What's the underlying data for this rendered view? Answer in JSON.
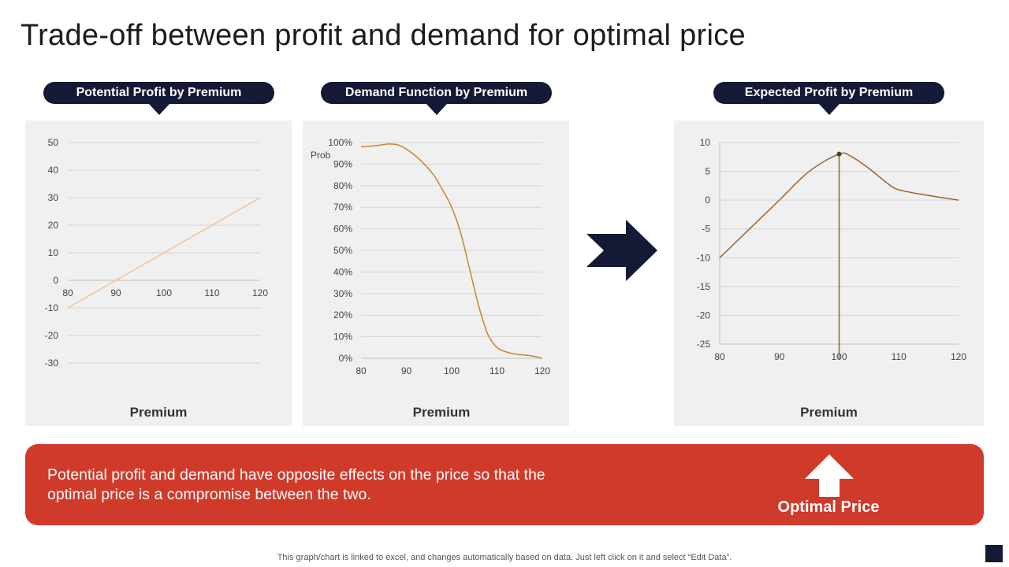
{
  "slide": {
    "title": "Trade-off between profit and demand for optimal price",
    "footnote": "This graph/chart is linked to excel,  and changes automatically based on data. Just left click on it and select “Edit Data”."
  },
  "banner": {
    "text": "Potential profit and demand  have opposite effects on the price so that the optimal  price is a compromise  between the two.",
    "cta_label": "Optimal Price",
    "color": "#cf3a2b"
  },
  "colors": {
    "navy": "#141935",
    "panel": "#f0f0f0"
  },
  "icons": {
    "arrow": "right-arrow-icon",
    "up": "up-arrow-icon"
  },
  "chart_data": [
    {
      "type": "line",
      "title": "Potential Profit by Premium",
      "xlabel": "Premium",
      "ylabel": "",
      "x": [
        80,
        120
      ],
      "series": [
        {
          "name": "Potential Profit",
          "values": [
            -10,
            30
          ],
          "color": "#f5c49a"
        }
      ],
      "xlim": [
        80,
        120
      ],
      "ylim": [
        -30,
        50
      ],
      "xticks": [
        "80",
        "90",
        "100",
        "110",
        "120"
      ],
      "yticks": [
        "50",
        "40",
        "30",
        "20",
        "10",
        "0",
        "-10",
        "-20",
        "-30"
      ]
    },
    {
      "type": "line",
      "title": "Demand Function by Premium",
      "xlabel": "Premium",
      "ylabel": "Prob",
      "x": [
        80,
        83,
        86,
        88,
        90,
        93,
        96,
        98,
        100,
        102,
        104,
        106,
        108,
        110,
        112,
        114,
        116,
        118,
        120
      ],
      "series": [
        {
          "name": "Demand",
          "values": [
            0.98,
            0.985,
            0.993,
            0.99,
            0.97,
            0.92,
            0.85,
            0.78,
            0.7,
            0.58,
            0.41,
            0.24,
            0.11,
            0.05,
            0.03,
            0.02,
            0.015,
            0.01,
            0.0
          ],
          "color": "#c8862e"
        }
      ],
      "xlim": [
        80,
        120
      ],
      "ylim": [
        0,
        1
      ],
      "xticks": [
        "80",
        "90",
        "100",
        "110",
        "120"
      ],
      "yticks": [
        "100%",
        "90%",
        "80%",
        "70%",
        "60%",
        "50%",
        "40%",
        "30%",
        "20%",
        "10%",
        "0%"
      ]
    },
    {
      "type": "line",
      "title": "Expected Profit by Premium",
      "xlabel": "Premium",
      "ylabel": "",
      "x": [
        80,
        85,
        90,
        95,
        100,
        102,
        105,
        108,
        110,
        115,
        120
      ],
      "series": [
        {
          "name": "Expected Profit",
          "values": [
            -10,
            -5,
            0,
            5,
            8,
            7.6,
            5.5,
            3,
            1.8,
            0.8,
            0
          ],
          "color": "#a0622a"
        }
      ],
      "marker": {
        "x": 100,
        "y": 8
      },
      "xlim": [
        80,
        120
      ],
      "ylim": [
        -25,
        10
      ],
      "xticks": [
        "80",
        "90",
        "100",
        "110",
        "120"
      ],
      "yticks": [
        "10",
        "5",
        "0",
        "-5",
        "-10",
        "-15",
        "-20",
        "-25"
      ]
    }
  ]
}
